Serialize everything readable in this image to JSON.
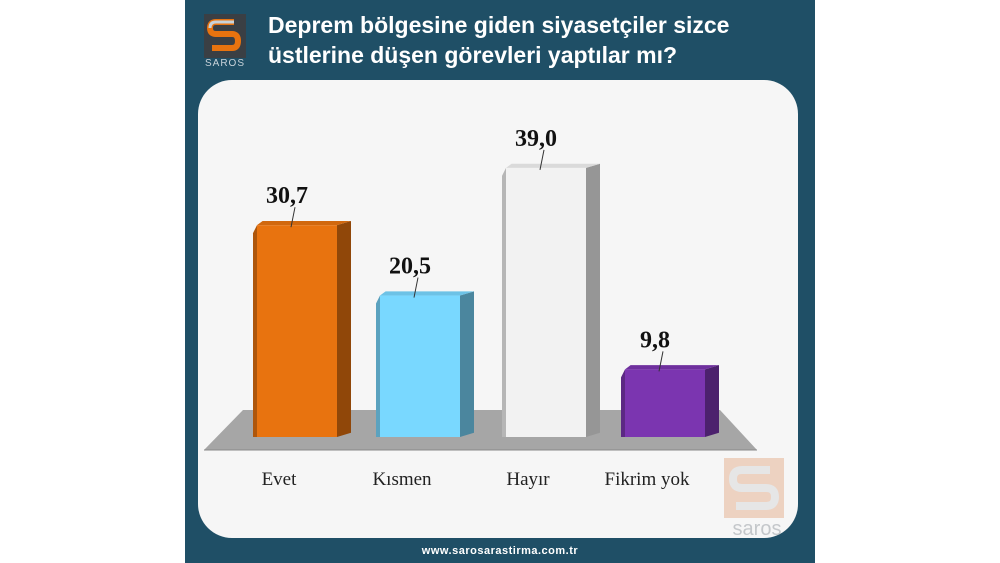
{
  "header": {
    "title_line1": "Deprem bölgesine giden siyasetçiler sizce",
    "title_line2": "üstlerine düşen görevleri yaptılar mı?"
  },
  "branding": {
    "logo_top_text": "SAROS",
    "logo_bottom_text": "saros",
    "website": "www.sarosarastirma.com.tr"
  },
  "chart_data": {
    "type": "bar",
    "categories": [
      "Evet",
      "Kısmen",
      "Hayır",
      "Fikrim yok"
    ],
    "values": [
      30.7,
      20.5,
      39.0,
      9.8
    ],
    "value_labels": [
      "30,7",
      "20,5",
      "39,0",
      "9,8"
    ],
    "colors": [
      "#e8730f",
      "#79d8ff",
      "#f2f2f2",
      "#7b35b0"
    ],
    "title": "Deprem bölgesine giden siyasetçiler sizce üstlerine düşen görevleri yaptılar mı?",
    "xlabel": "",
    "ylabel": "",
    "ylim": [
      0,
      45
    ],
    "grid": false,
    "legend": "none",
    "style": "3d-columns"
  }
}
